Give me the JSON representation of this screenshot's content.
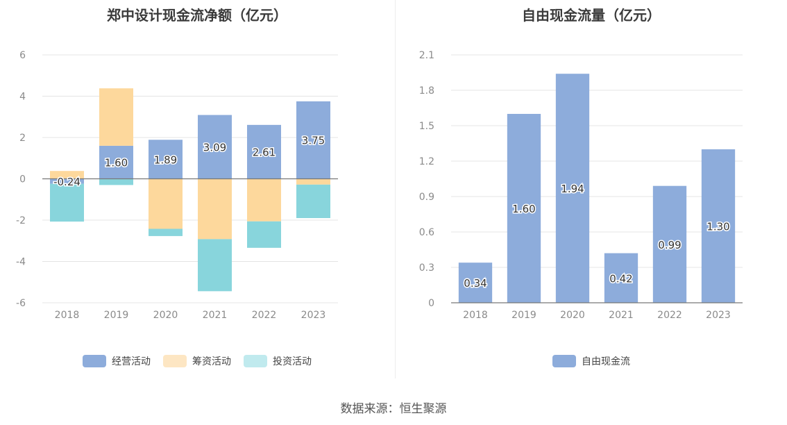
{
  "chart_data": [
    {
      "type": "bar",
      "title": "郑中设计现金流净额（亿元）",
      "categories": [
        "2018",
        "2019",
        "2020",
        "2021",
        "2022",
        "2023"
      ],
      "ylim": [
        -6,
        6
      ],
      "yticks": [
        "6",
        "4",
        "2",
        "0",
        "-2",
        "-4",
        "-6"
      ],
      "stacked": true,
      "series": [
        {
          "name": "经营活动",
          "color": "#8dacdb",
          "values": [
            -0.24,
            1.6,
            1.89,
            3.09,
            2.61,
            3.75
          ],
          "labels": [
            "-0.24",
            "1.60",
            "1.89",
            "3.09",
            "2.61",
            "3.75"
          ]
        },
        {
          "name": "筹资活动",
          "color": "#fdd89c",
          "values": [
            0.38,
            2.78,
            -2.42,
            -2.92,
            -2.06,
            -0.28
          ]
        },
        {
          "name": "投资活动",
          "color": "#88d5dc",
          "values": [
            -1.83,
            -0.3,
            -0.35,
            -2.52,
            -1.28,
            -1.62
          ]
        }
      ],
      "legend": [
        {
          "label": "经营活动",
          "color": "#8dacdb"
        },
        {
          "label": "筹资活动",
          "color": "#fde6c3"
        },
        {
          "label": "投资活动",
          "color": "#c0eaee"
        }
      ],
      "grid": true,
      "legend_position": "bottom"
    },
    {
      "type": "bar",
      "title": "自由现金流量（亿元）",
      "categories": [
        "2018",
        "2019",
        "2020",
        "2021",
        "2022",
        "2023"
      ],
      "ylim": [
        0,
        2.1
      ],
      "yticks": [
        "2.1",
        "1.8",
        "1.5",
        "1.2",
        "0.9",
        "0.6",
        "0.3",
        "0"
      ],
      "series": [
        {
          "name": "自由现金流",
          "color": "#8dacdb",
          "values": [
            0.34,
            1.6,
            1.94,
            0.42,
            0.99,
            1.3
          ],
          "labels": [
            "0.34",
            "1.60",
            "1.94",
            "0.42",
            "0.99",
            "1.30"
          ]
        }
      ],
      "legend": [
        {
          "label": "自由现金流",
          "color": "#8dacdb"
        }
      ],
      "grid": true,
      "legend_position": "bottom"
    }
  ],
  "footer": {
    "source": "数据来源：恒生聚源"
  }
}
